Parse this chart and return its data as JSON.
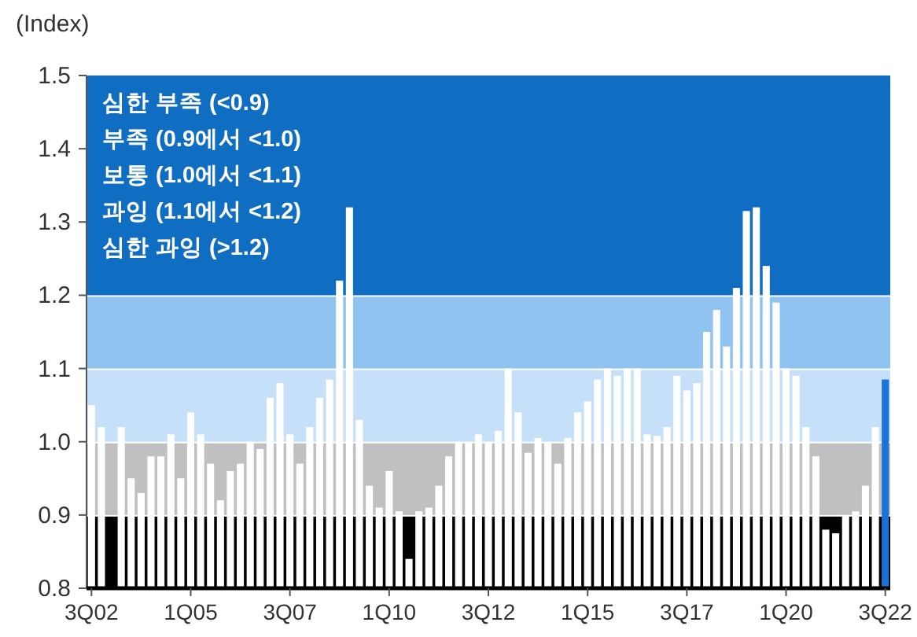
{
  "chart_data": {
    "type": "bar",
    "ylabel": "(Index)",
    "categories": [
      "3Q02",
      null,
      null,
      null,
      null,
      null,
      null,
      null,
      null,
      null,
      "1Q05",
      null,
      null,
      null,
      null,
      null,
      null,
      null,
      null,
      null,
      "3Q07",
      null,
      null,
      null,
      null,
      null,
      null,
      null,
      null,
      null,
      "1Q10",
      null,
      null,
      null,
      null,
      null,
      null,
      null,
      null,
      null,
      "3Q12",
      null,
      null,
      null,
      null,
      null,
      null,
      null,
      null,
      null,
      "1Q15",
      null,
      null,
      null,
      null,
      null,
      null,
      null,
      null,
      null,
      "3Q17",
      null,
      null,
      null,
      null,
      null,
      null,
      null,
      null,
      null,
      "1Q20",
      null,
      null,
      null,
      null,
      null,
      null,
      null,
      null,
      null,
      "3Q22"
    ],
    "values": [
      1.05,
      1.02,
      null,
      1.02,
      0.95,
      0.93,
      0.98,
      0.98,
      1.01,
      0.95,
      1.04,
      1.01,
      0.97,
      0.92,
      0.96,
      0.97,
      1.0,
      0.99,
      1.06,
      1.08,
      1.01,
      0.97,
      1.02,
      1.06,
      1.085,
      1.22,
      1.32,
      1.03,
      0.94,
      0.91,
      0.96,
      0.905,
      0.84,
      0.905,
      0.91,
      0.94,
      0.98,
      1.0,
      1.0,
      1.01,
      1.0,
      1.015,
      1.1,
      1.04,
      0.985,
      1.005,
      1.0,
      0.97,
      1.005,
      1.04,
      1.055,
      1.085,
      1.1,
      1.09,
      1.1,
      1.1,
      1.01,
      1.008,
      1.02,
      1.09,
      1.07,
      1.08,
      1.15,
      1.18,
      1.13,
      1.21,
      1.315,
      1.32,
      1.24,
      1.19,
      1.1,
      1.09,
      1.02,
      0.98,
      0.88,
      0.875,
      0.9,
      0.905,
      0.94,
      1.02,
      1.085
    ],
    "colors": [
      "#ffffff",
      "#ffffff",
      "#ffffff",
      "#ffffff",
      "#ffffff",
      "#ffffff",
      "#ffffff",
      "#ffffff",
      "#ffffff",
      "#ffffff",
      "#ffffff",
      "#ffffff",
      "#ffffff",
      "#ffffff",
      "#ffffff",
      "#ffffff",
      "#ffffff",
      "#ffffff",
      "#ffffff",
      "#ffffff",
      "#ffffff",
      "#ffffff",
      "#ffffff",
      "#ffffff",
      "#ffffff",
      "#ffffff",
      "#ffffff",
      "#ffffff",
      "#ffffff",
      "#ffffff",
      "#ffffff",
      "#ffffff",
      "#ffffff",
      "#ffffff",
      "#ffffff",
      "#ffffff",
      "#ffffff",
      "#ffffff",
      "#ffffff",
      "#ffffff",
      "#ffffff",
      "#ffffff",
      "#ffffff",
      "#ffffff",
      "#ffffff",
      "#ffffff",
      "#ffffff",
      "#ffffff",
      "#ffffff",
      "#ffffff",
      "#ffffff",
      "#ffffff",
      "#ffffff",
      "#ffffff",
      "#ffffff",
      "#ffffff",
      "#ffffff",
      "#ffffff",
      "#ffffff",
      "#ffffff",
      "#ffffff",
      "#ffffff",
      "#ffffff",
      "#ffffff",
      "#ffffff",
      "#ffffff",
      "#ffffff",
      "#ffffff",
      "#ffffff",
      "#ffffff",
      "#ffffff",
      "#ffffff",
      "#ffffff",
      "#ffffff",
      "#ffffff",
      "#ffffff",
      "#ffffff",
      "#ffffff",
      "#ffffff",
      "#ffffff",
      "#1a73d6"
    ],
    "ylim": [
      0.8,
      1.5
    ],
    "yticks": [
      0.8,
      0.9,
      {
        "value": 1.0,
        "label": "1.0"
      },
      1.1,
      1.2,
      1.3,
      1.4,
      1.5
    ],
    "bands": [
      {
        "axis": "y",
        "from": 0.8,
        "to": 0.9,
        "color": "#000000"
      },
      {
        "axis": "y",
        "from": 0.9,
        "to": 1.0,
        "color": "#c0c0c0"
      },
      {
        "axis": "y",
        "from": 1.0,
        "to": 1.1,
        "color": "#c5e0f8"
      },
      {
        "axis": "y",
        "from": 1.1,
        "to": 1.2,
        "color": "#90c3f0"
      },
      {
        "axis": "y",
        "from": 1.2,
        "to": 1.5,
        "color": "#106ec2"
      }
    ],
    "annotations": [
      "심한 부족 (<0.9)",
      "부족 (0.9에서 <1.0)",
      "보통 (1.0에서 <1.1)",
      "과잉 (1.1에서 <1.2)",
      "심한 과잉 (>1.2)"
    ]
  }
}
